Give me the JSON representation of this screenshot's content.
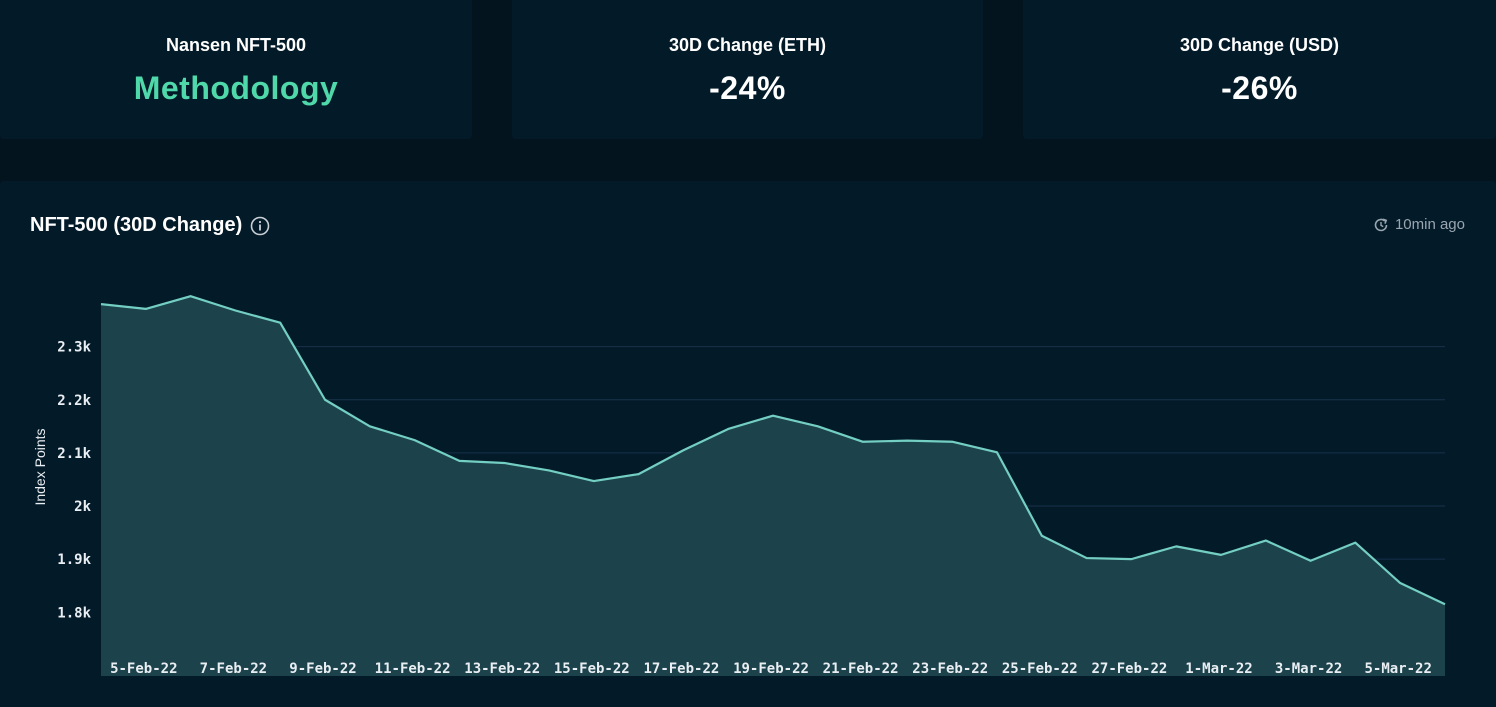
{
  "cards": {
    "index": {
      "label": "Nansen NFT-500",
      "value": "Methodology"
    },
    "eth": {
      "label": "30D Change (ETH)",
      "value": "-24%"
    },
    "usd": {
      "label": "30D Change (USD)",
      "value": "-26%"
    }
  },
  "chart_panel": {
    "title": "NFT-500 (30D Change)",
    "info_icon": "info-icon",
    "updated": "10min ago",
    "updated_icon": "refresh-clock-icon"
  },
  "colors": {
    "line": "#74cfc3",
    "area": "#1c424c",
    "accent": "#4fd8a9",
    "grid": "#18324b"
  },
  "chart_data": {
    "type": "area",
    "title": "NFT-500 (30D Change)",
    "ylabel": "Index Points",
    "xlabel": "",
    "grid": true,
    "ylim": [
      1680,
      2480
    ],
    "yticks": [
      {
        "value": 1800,
        "label": "1.8k"
      },
      {
        "value": 1900,
        "label": "1.9k"
      },
      {
        "value": 2000,
        "label": "2k"
      },
      {
        "value": 2100,
        "label": "2.1k"
      },
      {
        "value": 2200,
        "label": "2.2k"
      },
      {
        "value": 2300,
        "label": "2.3k"
      }
    ],
    "xtick_labels": [
      "5-Feb-22",
      "7-Feb-22",
      "9-Feb-22",
      "11-Feb-22",
      "13-Feb-22",
      "15-Feb-22",
      "17-Feb-22",
      "19-Feb-22",
      "21-Feb-22",
      "23-Feb-22",
      "25-Feb-22",
      "27-Feb-22",
      "1-Mar-22",
      "3-Mar-22",
      "5-Mar-22"
    ],
    "x": [
      "4-Feb-22",
      "5-Feb-22",
      "6-Feb-22",
      "7-Feb-22",
      "8-Feb-22",
      "9-Feb-22",
      "10-Feb-22",
      "11-Feb-22",
      "12-Feb-22",
      "13-Feb-22",
      "14-Feb-22",
      "15-Feb-22",
      "16-Feb-22",
      "17-Feb-22",
      "18-Feb-22",
      "19-Feb-22",
      "20-Feb-22",
      "21-Feb-22",
      "22-Feb-22",
      "23-Feb-22",
      "24-Feb-22",
      "25-Feb-22",
      "26-Feb-22",
      "27-Feb-22",
      "28-Feb-22",
      "1-Mar-22",
      "2-Mar-22",
      "3-Mar-22",
      "4-Mar-22",
      "5-Mar-22",
      "6-Mar-22"
    ],
    "values": [
      2380,
      2371,
      2395,
      2368,
      2345,
      2200,
      2150,
      2124,
      2085,
      2081,
      2067,
      2047,
      2060,
      2105,
      2145,
      2170,
      2150,
      2121,
      2123,
      2121,
      2101,
      1944,
      1902,
      1900,
      1924,
      1908,
      1935,
      1897,
      1931,
      1855,
      1815
    ]
  }
}
